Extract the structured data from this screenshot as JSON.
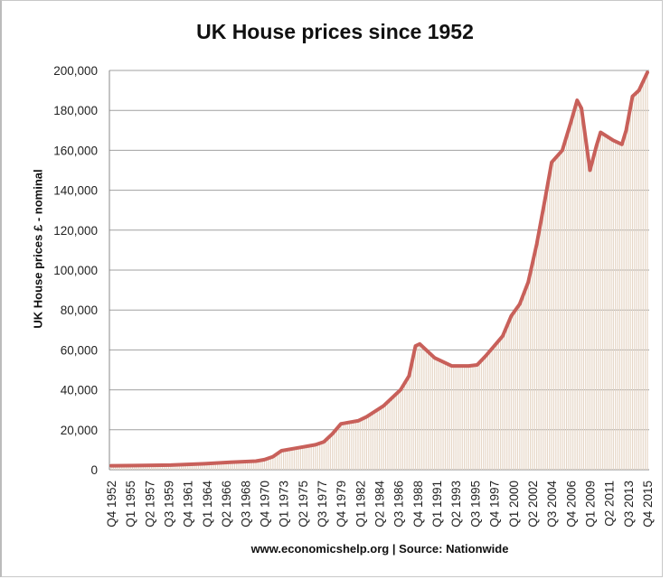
{
  "chart_data": {
    "type": "line",
    "title": "UK House prices since 1952",
    "xlabel": "www.economicshelp.org | Source: Nationwide",
    "ylabel": "UK House prices £ - nominal",
    "ylim": [
      0,
      200000
    ],
    "yticks": [
      "0",
      "20,000",
      "40,000",
      "60,000",
      "80,000",
      "100,000",
      "120,000",
      "140,000",
      "160,000",
      "180,000",
      "200,000"
    ],
    "xticks": [
      "Q4 1952",
      "Q1 1955",
      "Q2 1957",
      "Q3 1959",
      "Q4 1961",
      "Q1 1964",
      "Q2 1966",
      "Q3 1968",
      "Q4 1970",
      "Q1 1973",
      "Q2 1975",
      "Q3 1977",
      "Q4 1979",
      "Q1 1982",
      "Q2 1984",
      "Q3 1986",
      "Q4 1988",
      "Q1 1991",
      "Q2 1993",
      "Q3 1995",
      "Q4 1997",
      "Q1 2000",
      "Q2 2002",
      "Q3 2004",
      "Q4 2006",
      "Q1 2009",
      "Q2 2011",
      "Q3 2013",
      "Q4 2015"
    ],
    "grid": true,
    "colors": {
      "line": "#c8605a",
      "bars": "#e6d6c6",
      "grid": "#a0a0a0"
    },
    "points": [
      [
        "Q4 1952",
        2000
      ],
      [
        "Q4 1955",
        2100
      ],
      [
        "Q4 1959",
        2300
      ],
      [
        "Q4 1963",
        3000
      ],
      [
        "Q4 1966",
        3700
      ],
      [
        "Q4 1969",
        4300
      ],
      [
        "Q4 1970",
        5000
      ],
      [
        "Q4 1971",
        6500
      ],
      [
        "Q4 1972",
        9500
      ],
      [
        "Q4 1974",
        11000
      ],
      [
        "Q4 1976",
        12500
      ],
      [
        "Q4 1977",
        14000
      ],
      [
        "Q4 1978",
        18000
      ],
      [
        "Q4 1979",
        23000
      ],
      [
        "Q4 1981",
        24500
      ],
      [
        "Q4 1982",
        26500
      ],
      [
        "Q4 1984",
        32000
      ],
      [
        "Q4 1986",
        40000
      ],
      [
        "Q4 1987",
        47000
      ],
      [
        "Q3 1988",
        62000
      ],
      [
        "Q1 1989",
        63000
      ],
      [
        "Q4 1990",
        56000
      ],
      [
        "Q4 1992",
        52000
      ],
      [
        "Q4 1994",
        52000
      ],
      [
        "Q4 1995",
        52500
      ],
      [
        "Q4 1996",
        57000
      ],
      [
        "Q4 1997",
        62000
      ],
      [
        "Q4 1998",
        67000
      ],
      [
        "Q4 1999",
        77000
      ],
      [
        "Q4 2000",
        83000
      ],
      [
        "Q4 2001",
        94000
      ],
      [
        "Q4 2002",
        113000
      ],
      [
        "Q4 2003",
        136000
      ],
      [
        "Q3 2004",
        154000
      ],
      [
        "Q4 2005",
        160000
      ],
      [
        "Q4 2006",
        174000
      ],
      [
        "Q3 2007",
        185000
      ],
      [
        "Q1 2008",
        181000
      ],
      [
        "Q1 2009",
        150000
      ],
      [
        "Q4 2009",
        162000
      ],
      [
        "Q2 2010",
        169000
      ],
      [
        "Q4 2011",
        165000
      ],
      [
        "Q4 2012",
        163000
      ],
      [
        "Q2 2013",
        170000
      ],
      [
        "Q1 2014",
        187000
      ],
      [
        "Q4 2014",
        190000
      ],
      [
        "Q4 2015",
        199000
      ]
    ]
  }
}
